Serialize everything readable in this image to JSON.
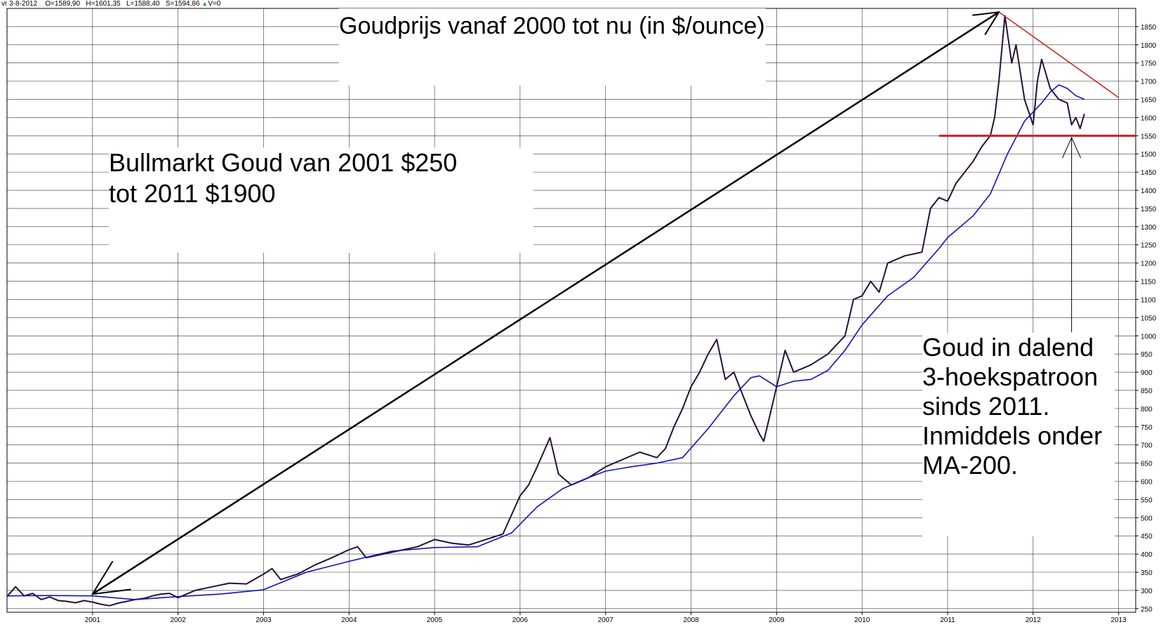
{
  "header": {
    "date": "vr 3-8-2012",
    "open": "O=1589,90",
    "high": "H=1601,35",
    "low": "L=1588,40",
    "close": "S=1594,86",
    "volume": "V=0"
  },
  "chart_data": {
    "type": "line",
    "title": "Goudprijs vanaf 2000 tot nu (in $/ounce)",
    "x_ticks": [
      "2001",
      "2002",
      "2003",
      "2004",
      "2005",
      "2006",
      "2007",
      "2008",
      "2009",
      "2010",
      "2011",
      "2012",
      "2013"
    ],
    "y_ticks": [
      250,
      300,
      350,
      400,
      450,
      500,
      550,
      600,
      650,
      700,
      750,
      800,
      850,
      900,
      950,
      1000,
      1050,
      1100,
      1150,
      1200,
      1250,
      1300,
      1350,
      1400,
      1450,
      1500,
      1550,
      1600,
      1650,
      1700,
      1750,
      1800,
      1850
    ],
    "xlim": [
      2000.0,
      2013.2
    ],
    "ylim": [
      240,
      1900
    ],
    "grid": true,
    "series": [
      {
        "color": "#2a0f38",
        "x": [
          2000.0,
          2000.1,
          2000.2,
          2000.3,
          2000.4,
          2000.5,
          2000.6,
          2000.7,
          2000.8,
          2000.9,
          2001.0,
          2001.1,
          2001.2,
          2001.3,
          2001.4,
          2001.5,
          2001.6,
          2001.7,
          2001.8,
          2001.9,
          2002.0,
          2002.2,
          2002.4,
          2002.6,
          2002.8,
          2003.0,
          2003.1,
          2003.2,
          2003.4,
          2003.6,
          2003.8,
          2004.0,
          2004.1,
          2004.2,
          2004.4,
          2004.6,
          2004.8,
          2005.0,
          2005.2,
          2005.4,
          2005.6,
          2005.8,
          2006.0,
          2006.1,
          2006.2,
          2006.35,
          2006.45,
          2006.6,
          2006.8,
          2007.0,
          2007.2,
          2007.4,
          2007.6,
          2007.7,
          2007.8,
          2007.9,
          2008.0,
          2008.1,
          2008.2,
          2008.3,
          2008.4,
          2008.5,
          2008.6,
          2008.7,
          2008.8,
          2008.85,
          2008.9,
          2009.0,
          2009.1,
          2009.2,
          2009.4,
          2009.6,
          2009.8,
          2009.9,
          2010.0,
          2010.1,
          2010.2,
          2010.3,
          2010.5,
          2010.7,
          2010.8,
          2010.9,
          2011.0,
          2011.1,
          2011.2,
          2011.3,
          2011.4,
          2011.5,
          2011.55,
          2011.6,
          2011.67,
          2011.75,
          2011.8,
          2011.9,
          2012.0,
          2012.05,
          2012.1,
          2012.2,
          2012.3,
          2012.4,
          2012.45,
          2012.5,
          2012.55,
          2012.6
        ],
        "y": [
          283,
          310,
          285,
          292,
          275,
          282,
          272,
          270,
          266,
          272,
          268,
          262,
          258,
          265,
          270,
          275,
          278,
          285,
          290,
          292,
          280,
          300,
          310,
          320,
          318,
          345,
          360,
          330,
          345,
          370,
          390,
          412,
          420,
          390,
          400,
          410,
          420,
          440,
          430,
          425,
          440,
          455,
          560,
          590,
          640,
          720,
          620,
          590,
          610,
          640,
          660,
          680,
          665,
          690,
          750,
          800,
          860,
          900,
          950,
          990,
          880,
          900,
          840,
          780,
          730,
          710,
          760,
          860,
          960,
          900,
          920,
          950,
          1000,
          1100,
          1110,
          1150,
          1120,
          1200,
          1220,
          1230,
          1350,
          1380,
          1370,
          1420,
          1450,
          1480,
          1520,
          1550,
          1600,
          1700,
          1880,
          1750,
          1800,
          1650,
          1580,
          1700,
          1760,
          1680,
          1650,
          1640,
          1580,
          1600,
          1570,
          1610
        ]
      },
      {
        "name": "MA-200",
        "color": "#1111bb",
        "x": [
          2000.0,
          2000.5,
          2001.0,
          2001.5,
          2002.0,
          2002.5,
          2003.0,
          2003.5,
          2004.0,
          2004.5,
          2005.0,
          2005.5,
          2005.9,
          2006.2,
          2006.5,
          2006.8,
          2007.0,
          2007.3,
          2007.6,
          2007.9,
          2008.2,
          2008.5,
          2008.7,
          2008.8,
          2009.0,
          2009.2,
          2009.4,
          2009.6,
          2009.8,
          2010.0,
          2010.3,
          2010.6,
          2010.9,
          2011.0,
          2011.3,
          2011.5,
          2011.7,
          2011.9,
          2012.1,
          2012.2,
          2012.3,
          2012.4,
          2012.5,
          2012.6
        ],
        "y": [
          285,
          286,
          285,
          275,
          283,
          290,
          302,
          350,
          380,
          408,
          418,
          420,
          458,
          530,
          580,
          610,
          628,
          640,
          650,
          665,
          745,
          835,
          885,
          890,
          860,
          875,
          880,
          905,
          960,
          1030,
          1110,
          1160,
          1240,
          1270,
          1330,
          1390,
          1500,
          1590,
          1640,
          1670,
          1690,
          1680,
          1660,
          1650
        ]
      }
    ],
    "overlays": [
      {
        "kind": "long-arrow",
        "color": "#000000",
        "from": [
          2001.0,
          290
        ],
        "to": [
          2011.6,
          1890
        ]
      },
      {
        "kind": "trend",
        "color": "#c41c1c",
        "from": [
          2011.6,
          1890
        ],
        "to": [
          2013.0,
          1655
        ]
      },
      {
        "kind": "support",
        "color": "#d21f1f",
        "from": [
          2010.9,
          1550
        ],
        "to": [
          2013.2,
          1550
        ]
      },
      {
        "kind": "short-arrow",
        "color": "#000000",
        "from": [
          2012.45,
          1010
        ],
        "to": [
          2012.45,
          1545
        ]
      }
    ]
  },
  "annotations": {
    "bull_line1": "Bullmarkt Goud van 2001 $250",
    "bull_line2": "tot 2011 $1900",
    "trend_lines": [
      "Goud in dalend",
      "3-hoekspatroon",
      "sinds 2011.",
      "Inmiddels onder",
      "MA-200."
    ]
  }
}
